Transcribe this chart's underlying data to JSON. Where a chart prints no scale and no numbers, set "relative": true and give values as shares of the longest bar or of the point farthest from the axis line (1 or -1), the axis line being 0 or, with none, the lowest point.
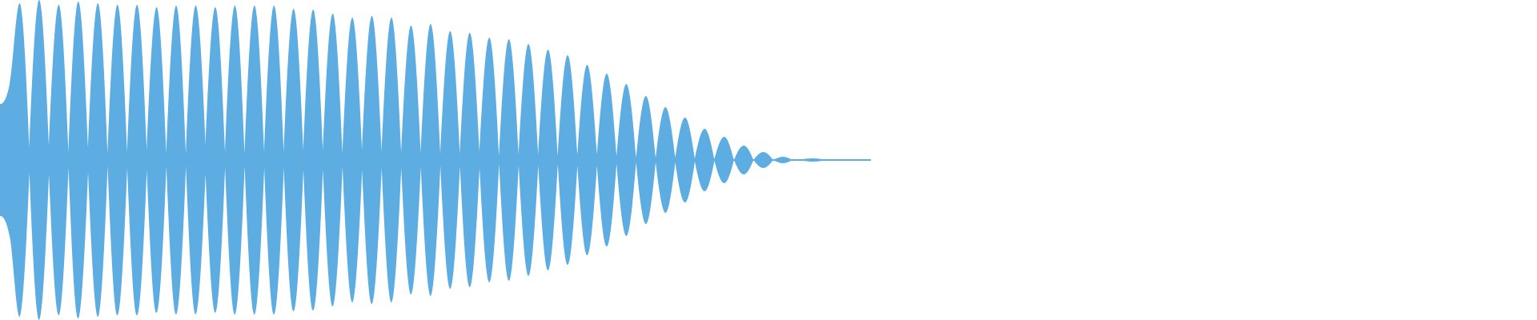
{
  "chart_data": {
    "type": "area",
    "relative": true,
    "categories": [
      null,
      null,
      null,
      null,
      null,
      null,
      null,
      null,
      null,
      null,
      null,
      null,
      null,
      null,
      null,
      null,
      null,
      null,
      null,
      null,
      null,
      null,
      null,
      null,
      null,
      null,
      null,
      null,
      null,
      null,
      null,
      null,
      null,
      null,
      null,
      null,
      null,
      null,
      null,
      null,
      null,
      null,
      null,
      null,
      null,
      null,
      null,
      null,
      null,
      null,
      null,
      null,
      null,
      null,
      null,
      null,
      null,
      null,
      null,
      null,
      null,
      null,
      null,
      null,
      null,
      null,
      null,
      null,
      null,
      null,
      null,
      null,
      null,
      null,
      null,
      null,
      null,
      null,
      null,
      null,
      null,
      null,
      null,
      null,
      null,
      null,
      null,
      null,
      null,
      null
    ],
    "series": [
      {
        "color": "#5dade2",
        "values": [
          0.35,
          0.48,
          0.98,
          0.08,
          1,
          0.09,
          0.97,
          0.05,
          0.99,
          0.075,
          0.98,
          0.04,
          0.97,
          0.05,
          0.97,
          0.065,
          0.955,
          0.04,
          0.965,
          0.04,
          0.965,
          0.09,
          0.955,
          0.05,
          0.965,
          0.04,
          0.965,
          0.05,
          0.965,
          0.05,
          0.945,
          0.06,
          0.94,
          0.06,
          0.915,
          0.04,
          0.89,
          0.065,
          0.9,
          0.05,
          0.89,
          0.05,
          0.84,
          0.045,
          0.85,
          0.04,
          0.805,
          0.04,
          0.795,
          0.05,
          0.765,
          0.025,
          0.755,
          0.035,
          0.725,
          0.035,
          0.69,
          0.025,
          0.655,
          0.035,
          0.595,
          0.035,
          0.54,
          0.025,
          0.475,
          0.015,
          0.4,
          0.015,
          0.33,
          0.015,
          0.265,
          0.01,
          0.195,
          0.005,
          0.145,
          0,
          0.09,
          0,
          0.05,
          0,
          0.02,
          0,
          0.005,
          0.01,
          0.005,
          0.005,
          0.005,
          0,
          0.005,
          0.005
        ]
      },
      {
        "color": "#5dade2",
        "values": [
          -0.35,
          -0.48,
          -0.98,
          -0.08,
          -1,
          -0.09,
          -0.97,
          -0.05,
          -0.99,
          -0.075,
          -0.98,
          -0.04,
          -0.97,
          -0.05,
          -0.97,
          -0.065,
          -0.955,
          -0.04,
          -0.965,
          -0.04,
          -0.965,
          -0.09,
          -0.955,
          -0.05,
          -0.965,
          -0.04,
          -0.965,
          -0.05,
          -0.965,
          -0.05,
          -0.945,
          -0.06,
          -0.94,
          -0.06,
          -0.915,
          -0.04,
          -0.89,
          -0.065,
          -0.9,
          -0.05,
          -0.89,
          -0.05,
          -0.84,
          -0.045,
          -0.85,
          -0.04,
          -0.805,
          -0.04,
          -0.795,
          -0.05,
          -0.765,
          -0.025,
          -0.755,
          -0.035,
          -0.725,
          -0.035,
          -0.69,
          -0.025,
          -0.655,
          -0.035,
          -0.595,
          -0.035,
          -0.54,
          -0.025,
          -0.475,
          -0.015,
          -0.4,
          -0.015,
          -0.33,
          -0.015,
          -0.265,
          -0.01,
          -0.195,
          -0.005,
          -0.145,
          0,
          -0.09,
          0,
          -0.05,
          0,
          -0.02,
          0,
          -0.005,
          -0.01,
          -0.005,
          -0.005,
          -0.005,
          0,
          -0.005,
          -0.005
        ]
      }
    ],
    "ref_lines": [
      {
        "axis": "y",
        "value": 0,
        "color": "#5dade2"
      }
    ]
  }
}
